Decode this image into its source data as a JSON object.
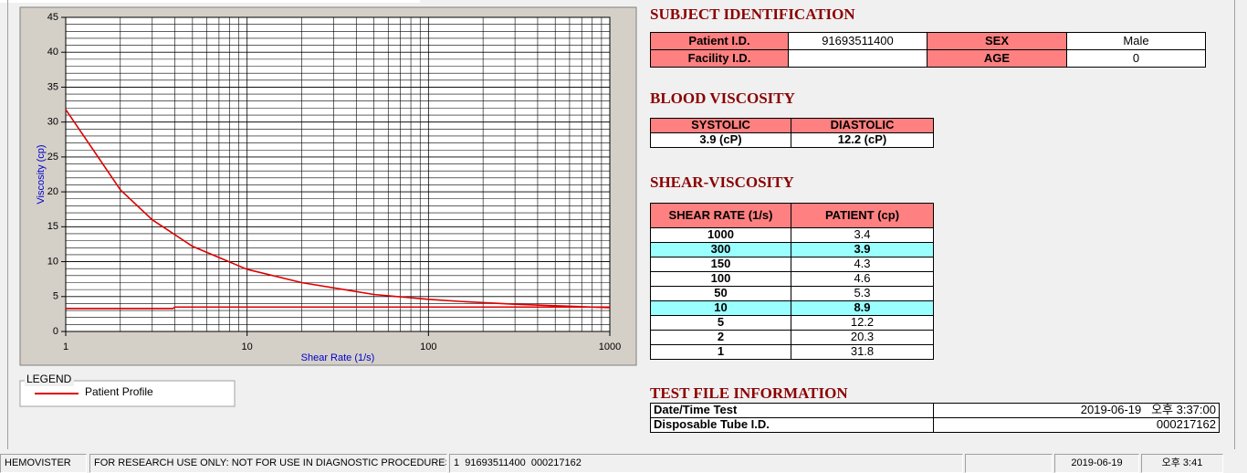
{
  "chart_data": {
    "type": "line",
    "xlabel": "Shear Rate (1/s)",
    "ylabel": "Viscosity (cp)",
    "xscale": "log",
    "xlim": [
      1,
      1000
    ],
    "xticks": [
      1,
      10,
      100,
      1000
    ],
    "ylim": [
      0,
      45
    ],
    "yticks": [
      0,
      5,
      10,
      15,
      20,
      25,
      30,
      35,
      40,
      45
    ],
    "grid": true,
    "minor_grid": true,
    "yminor_step": 1,
    "legend_title": "LEGEND",
    "series": [
      {
        "name": "Patient Profile",
        "color": "#dd0000",
        "x": [
          1,
          2,
          3,
          5,
          10,
          20,
          50,
          100,
          150,
          300,
          1000
        ],
        "values": [
          31.8,
          20.3,
          16,
          12.2,
          8.9,
          7,
          5.3,
          4.6,
          4.3,
          3.9,
          3.4
        ]
      },
      {
        "color": "#dd0000",
        "x": [
          1,
          3.9,
          4,
          1000
        ],
        "values": [
          3.3,
          3.3,
          3.5,
          3.5
        ]
      }
    ]
  },
  "subject": {
    "title": "SUBJECT IDENTIFICATION",
    "rows": [
      [
        "Patient I.D.",
        "91693511400",
        "SEX",
        "Male"
      ],
      [
        "Facility I.D.",
        null,
        "AGE",
        "0"
      ]
    ]
  },
  "blood": {
    "title": "BLOOD VISCOSITY",
    "headers": [
      "SYSTOLIC",
      "DIASTOLIC"
    ],
    "values": [
      "3.9 (cP)",
      "12.2 (cP)"
    ]
  },
  "shear": {
    "title": "SHEAR-VISCOSITY",
    "headers": [
      "SHEAR RATE (1/s)",
      "PATIENT (cp)"
    ],
    "highlight_rows": [
      1,
      5
    ],
    "rows": [
      [
        1000,
        3.4
      ],
      [
        300,
        3.9
      ],
      [
        150,
        4.3
      ],
      [
        100,
        4.6
      ],
      [
        50,
        5.3
      ],
      [
        10,
        8.9
      ],
      [
        5,
        12.2
      ],
      [
        2,
        20.3
      ],
      [
        1,
        31.8
      ]
    ]
  },
  "test_file": {
    "title": "TEST FILE INFORMATION",
    "rows": [
      [
        "Date/Time Test",
        "2019-06-19   오후 3:37:00"
      ],
      [
        "Disposable Tube I.D.",
        "000217162"
      ]
    ]
  },
  "status_bar": [
    "HEMOVISTER",
    "FOR RESEARCH USE ONLY: NOT FOR USE IN DIAGNOSTIC PROCEDURES",
    "1  91693511400  000217162",
    "2019-06-19",
    "오후 3:41"
  ]
}
